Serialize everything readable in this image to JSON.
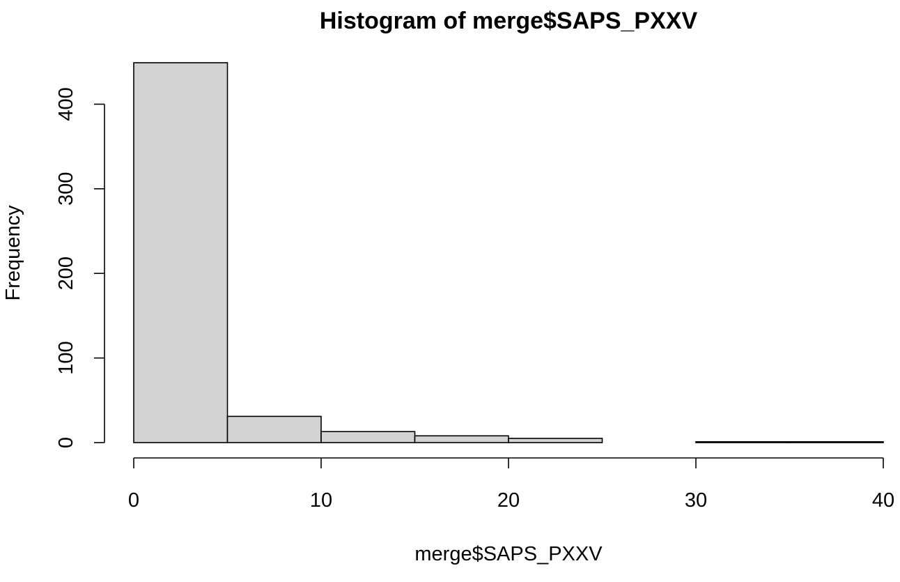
{
  "chart_data": {
    "type": "bar",
    "title": "Histogram of merge$SAPS_PXXV",
    "xlabel": "merge$SAPS_PXXV",
    "ylabel": "Frequency",
    "bins": [
      {
        "x0": 0,
        "x1": 5,
        "count": 449
      },
      {
        "x0": 5,
        "x1": 10,
        "count": 31
      },
      {
        "x0": 10,
        "x1": 15,
        "count": 13
      },
      {
        "x0": 15,
        "x1": 20,
        "count": 8
      },
      {
        "x0": 20,
        "x1": 25,
        "count": 5
      },
      {
        "x0": 25,
        "x1": 30,
        "count": 0
      },
      {
        "x0": 30,
        "x1": 35,
        "count": 1
      },
      {
        "x0": 35,
        "x1": 40,
        "count": 1
      }
    ],
    "xlim": [
      0,
      40
    ],
    "ylim": [
      0,
      449
    ],
    "x_ticks": [
      0,
      10,
      20,
      30,
      40
    ],
    "y_ticks": [
      0,
      100,
      200,
      300,
      400
    ],
    "bar_fill": "#d3d3d3",
    "bar_stroke": "#000000",
    "grid": false,
    "legend": "none"
  }
}
